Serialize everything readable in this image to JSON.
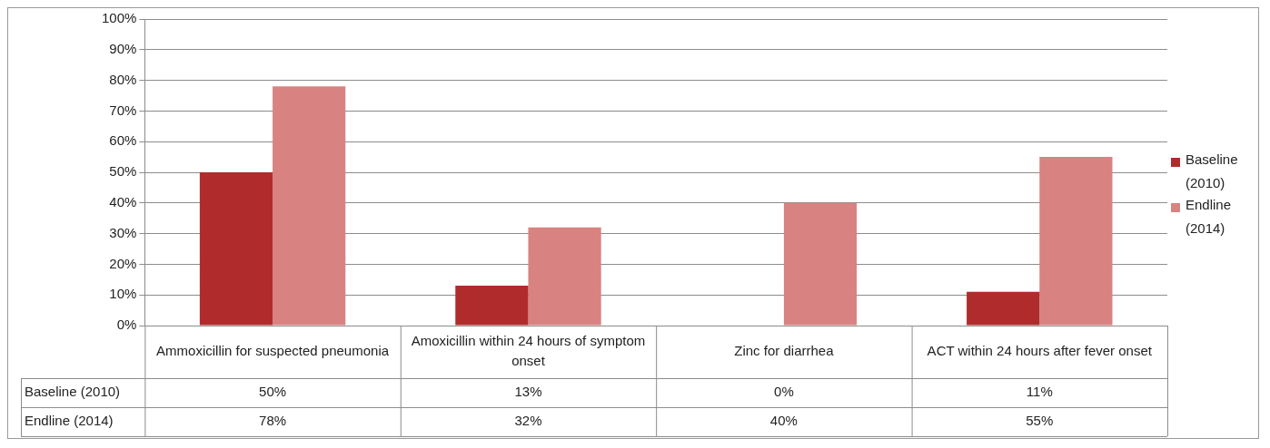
{
  "chart_data": {
    "type": "bar",
    "categories": [
      "Ammoxicillin for suspected pneumonia",
      "Amoxicillin within 24 hours of symptom onset",
      "Zinc for diarrhea",
      "ACT within 24 hours after fever onset"
    ],
    "series": [
      {
        "name": "Baseline (2010)",
        "color": "#b02c2c",
        "values": [
          50,
          13,
          0,
          11
        ],
        "value_labels": [
          "50%",
          "13%",
          "0%",
          "11%"
        ]
      },
      {
        "name": "Endline (2014)",
        "color": "#d98282",
        "values": [
          78,
          32,
          40,
          55
        ],
        "value_labels": [
          "78%",
          "32%",
          "40%",
          "55%"
        ]
      }
    ],
    "ylim": [
      0,
      100
    ],
    "yticks": [
      {
        "value": 0,
        "label": "0%"
      },
      {
        "value": 10,
        "label": "10%"
      },
      {
        "value": 20,
        "label": "20%"
      },
      {
        "value": 30,
        "label": "30%"
      },
      {
        "value": 40,
        "label": "40%"
      },
      {
        "value": 50,
        "label": "50%"
      },
      {
        "value": 60,
        "label": "60%"
      },
      {
        "value": 70,
        "label": "70%"
      },
      {
        "value": 80,
        "label": "80%"
      },
      {
        "value": 90,
        "label": "90%"
      },
      {
        "value": 100,
        "label": "100%"
      }
    ],
    "grid": "y",
    "legend": "right"
  }
}
